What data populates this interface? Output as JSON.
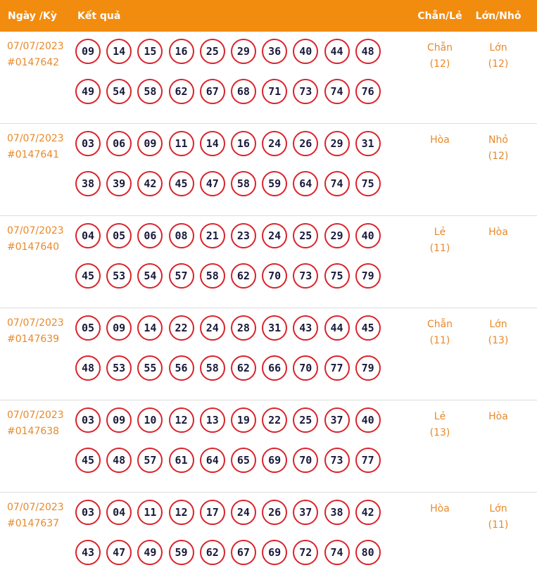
{
  "header": {
    "date_label": "Ngày /Kỳ",
    "result_label": "Kết quả",
    "chanle_label": "Chẵn/Lẻ",
    "lonnho_label": "Lớn/Nhỏ"
  },
  "rows": [
    {
      "date": "07/07/2023",
      "ky": "#0147642",
      "numbers": [
        "09",
        "14",
        "15",
        "16",
        "25",
        "29",
        "36",
        "40",
        "44",
        "48",
        "49",
        "54",
        "58",
        "62",
        "67",
        "68",
        "71",
        "73",
        "74",
        "76"
      ],
      "chanle": "Chẵn",
      "chanle_count": "(12)",
      "lonnho": "Lớn",
      "lonnho_count": "(12)"
    },
    {
      "date": "07/07/2023",
      "ky": "#0147641",
      "numbers": [
        "03",
        "06",
        "09",
        "11",
        "14",
        "16",
        "24",
        "26",
        "29",
        "31",
        "38",
        "39",
        "42",
        "45",
        "47",
        "58",
        "59",
        "64",
        "74",
        "75"
      ],
      "chanle": "Hòa",
      "chanle_count": "",
      "lonnho": "Nhỏ",
      "lonnho_count": "(12)"
    },
    {
      "date": "07/07/2023",
      "ky": "#0147640",
      "numbers": [
        "04",
        "05",
        "06",
        "08",
        "21",
        "23",
        "24",
        "25",
        "29",
        "40",
        "45",
        "53",
        "54",
        "57",
        "58",
        "62",
        "70",
        "73",
        "75",
        "79"
      ],
      "chanle": "Lẻ",
      "chanle_count": "(11)",
      "lonnho": "Hòa",
      "lonnho_count": ""
    },
    {
      "date": "07/07/2023",
      "ky": "#0147639",
      "numbers": [
        "05",
        "09",
        "14",
        "22",
        "24",
        "28",
        "31",
        "43",
        "44",
        "45",
        "48",
        "53",
        "55",
        "56",
        "58",
        "62",
        "66",
        "70",
        "77",
        "79"
      ],
      "chanle": "Chẵn",
      "chanle_count": "(11)",
      "lonnho": "Lớn",
      "lonnho_count": "(13)"
    },
    {
      "date": "07/07/2023",
      "ky": "#0147638",
      "numbers": [
        "03",
        "09",
        "10",
        "12",
        "13",
        "19",
        "22",
        "25",
        "37",
        "40",
        "45",
        "48",
        "57",
        "61",
        "64",
        "65",
        "69",
        "70",
        "73",
        "77"
      ],
      "chanle": "Lẻ",
      "chanle_count": "(13)",
      "lonnho": "Hòa",
      "lonnho_count": ""
    },
    {
      "date": "07/07/2023",
      "ky": "#0147637",
      "numbers": [
        "03",
        "04",
        "11",
        "12",
        "17",
        "24",
        "26",
        "37",
        "38",
        "42",
        "43",
        "47",
        "49",
        "59",
        "62",
        "67",
        "69",
        "72",
        "74",
        "80"
      ],
      "chanle": "Hòa",
      "chanle_count": "",
      "lonnho": "Lớn",
      "lonnho_count": "(11)"
    }
  ]
}
